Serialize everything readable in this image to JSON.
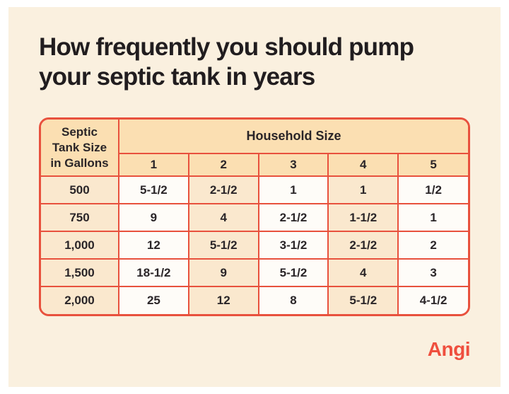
{
  "colors": {
    "background": "#faf0df",
    "frame": "#ffffff",
    "header-peach": "#fbdfb2",
    "cell-peach": "#fae8ce",
    "cell-white": "#fefcf8",
    "table-border": "#e8513d",
    "ink-title": "#211d1f",
    "ink-cell": "#2a2528",
    "brand-red": "#ef4f3e"
  },
  "title": {
    "line1": "How frequently you should pump",
    "line2": "your septic tank in years"
  },
  "table": {
    "corner_header": "Septic Tank Size in Gallons",
    "group_header": "Household Size",
    "column_headers": [
      "1",
      "2",
      "3",
      "4",
      "5"
    ],
    "rows": [
      {
        "label": "500",
        "values": [
          "5-1/2",
          "2-1/2",
          "1",
          "1",
          "1/2"
        ]
      },
      {
        "label": "750",
        "values": [
          "9",
          "4",
          "2-1/2",
          "1-1/2",
          "1"
        ]
      },
      {
        "label": "1,000",
        "values": [
          "12",
          "5-1/2",
          "3-1/2",
          "2-1/2",
          "2"
        ]
      },
      {
        "label": "1,500",
        "values": [
          "18-1/2",
          "9",
          "5-1/2",
          "4",
          "3"
        ]
      },
      {
        "label": "2,000",
        "values": [
          "25",
          "12",
          "8",
          "5-1/2",
          "4-1/2"
        ]
      }
    ]
  },
  "brand": {
    "name": "Angi"
  }
}
